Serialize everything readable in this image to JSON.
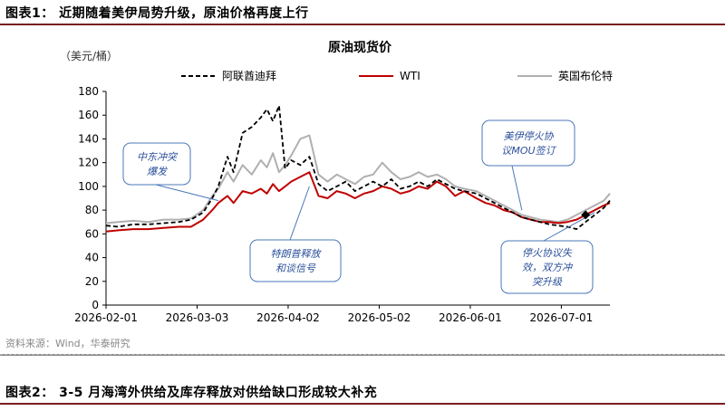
{
  "figure1": {
    "title": "图表1：  近期随着美伊局势升级，原油价格再度上行"
  },
  "figure2": {
    "title": "图表2：  3-5 月海湾外供给及库存释放对供给缺口形成较大补充"
  },
  "source": "资料来源：Wind，华泰研究",
  "colors": {
    "dubai": "#000000",
    "wti": "#c00000",
    "brent": "#b0b0b0",
    "rule": "#7a1f1f",
    "callout_border": "#4a78b8",
    "callout_text": "#2a4f9a"
  },
  "chart_data": {
    "type": "line",
    "title": "原油现货价",
    "unit_label": "（美元/桶）",
    "ylim": [
      0,
      180
    ],
    "yticks": [
      "0",
      "20",
      "40",
      "60",
      "80",
      "100",
      "120",
      "140",
      "160",
      "180"
    ],
    "xticks": [
      "2026-02-01",
      "2026-03-03",
      "2026-04-02",
      "2026-05-02",
      "2026-06-01",
      "2026-07-01"
    ],
    "xlim": [
      "2026-02-01",
      "2026-07-17"
    ],
    "grid": false,
    "legend_position": "top",
    "series": [
      {
        "name": "阿联酋迪拜",
        "style": "dashed",
        "color": "#000000",
        "points": [
          [
            "2026-02-01",
            67
          ],
          [
            "2026-02-05",
            66
          ],
          [
            "2026-02-10",
            68
          ],
          [
            "2026-02-15",
            68
          ],
          [
            "2026-02-20",
            69
          ],
          [
            "2026-02-25",
            70
          ],
          [
            "2026-03-01",
            72
          ],
          [
            "2026-03-05",
            78
          ],
          [
            "2026-03-08",
            90
          ],
          [
            "2026-03-10",
            100
          ],
          [
            "2026-03-13",
            125
          ],
          [
            "2026-03-15",
            112
          ],
          [
            "2026-03-18",
            145
          ],
          [
            "2026-03-21",
            150
          ],
          [
            "2026-03-24",
            158
          ],
          [
            "2026-03-26",
            165
          ],
          [
            "2026-03-28",
            155
          ],
          [
            "2026-03-30",
            168
          ],
          [
            "2026-04-01",
            115
          ],
          [
            "2026-04-03",
            122
          ],
          [
            "2026-04-06",
            118
          ],
          [
            "2026-04-09",
            125
          ],
          [
            "2026-04-12",
            102
          ],
          [
            "2026-04-15",
            96
          ],
          [
            "2026-04-18",
            100
          ],
          [
            "2026-04-21",
            104
          ],
          [
            "2026-04-24",
            96
          ],
          [
            "2026-04-27",
            100
          ],
          [
            "2026-04-30",
            104
          ],
          [
            "2026-05-03",
            100
          ],
          [
            "2026-05-06",
            106
          ],
          [
            "2026-05-09",
            98
          ],
          [
            "2026-05-12",
            100
          ],
          [
            "2026-05-15",
            104
          ],
          [
            "2026-05-18",
            100
          ],
          [
            "2026-05-21",
            106
          ],
          [
            "2026-05-24",
            102
          ],
          [
            "2026-05-27",
            98
          ],
          [
            "2026-05-30",
            96
          ],
          [
            "2026-06-03",
            94
          ],
          [
            "2026-06-06",
            90
          ],
          [
            "2026-06-09",
            86
          ],
          [
            "2026-06-12",
            82
          ],
          [
            "2026-06-15",
            78
          ],
          [
            "2026-06-18",
            74
          ],
          [
            "2026-06-21",
            72
          ],
          [
            "2026-06-24",
            70
          ],
          [
            "2026-06-27",
            68
          ],
          [
            "2026-06-30",
            67
          ],
          [
            "2026-07-03",
            66
          ],
          [
            "2026-07-06",
            64
          ],
          [
            "2026-07-09",
            70
          ],
          [
            "2026-07-12",
            76
          ],
          [
            "2026-07-15",
            82
          ],
          [
            "2026-07-17",
            88
          ]
        ]
      },
      {
        "name": "WTI",
        "style": "solid",
        "color": "#c00000",
        "points": [
          [
            "2026-02-01",
            62
          ],
          [
            "2026-02-05",
            63
          ],
          [
            "2026-02-10",
            64
          ],
          [
            "2026-02-15",
            64
          ],
          [
            "2026-02-20",
            65
          ],
          [
            "2026-02-25",
            66
          ],
          [
            "2026-03-01",
            66
          ],
          [
            "2026-03-05",
            72
          ],
          [
            "2026-03-08",
            80
          ],
          [
            "2026-03-10",
            86
          ],
          [
            "2026-03-13",
            92
          ],
          [
            "2026-03-15",
            86
          ],
          [
            "2026-03-18",
            96
          ],
          [
            "2026-03-21",
            94
          ],
          [
            "2026-03-24",
            98
          ],
          [
            "2026-03-26",
            94
          ],
          [
            "2026-03-28",
            102
          ],
          [
            "2026-03-30",
            96
          ],
          [
            "2026-04-01",
            100
          ],
          [
            "2026-04-03",
            104
          ],
          [
            "2026-04-06",
            108
          ],
          [
            "2026-04-09",
            112
          ],
          [
            "2026-04-12",
            92
          ],
          [
            "2026-04-15",
            90
          ],
          [
            "2026-04-18",
            96
          ],
          [
            "2026-04-21",
            94
          ],
          [
            "2026-04-24",
            90
          ],
          [
            "2026-04-27",
            94
          ],
          [
            "2026-04-30",
            96
          ],
          [
            "2026-05-03",
            100
          ],
          [
            "2026-05-06",
            98
          ],
          [
            "2026-05-09",
            94
          ],
          [
            "2026-05-12",
            96
          ],
          [
            "2026-05-15",
            100
          ],
          [
            "2026-05-18",
            98
          ],
          [
            "2026-05-21",
            104
          ],
          [
            "2026-05-24",
            100
          ],
          [
            "2026-05-27",
            92
          ],
          [
            "2026-05-30",
            96
          ],
          [
            "2026-06-03",
            90
          ],
          [
            "2026-06-06",
            86
          ],
          [
            "2026-06-09",
            84
          ],
          [
            "2026-06-12",
            80
          ],
          [
            "2026-06-15",
            78
          ],
          [
            "2026-06-18",
            74
          ],
          [
            "2026-06-21",
            72
          ],
          [
            "2026-06-24",
            70
          ],
          [
            "2026-06-27",
            70
          ],
          [
            "2026-06-30",
            69
          ],
          [
            "2026-07-03",
            70
          ],
          [
            "2026-07-06",
            72
          ],
          [
            "2026-07-09",
            76
          ],
          [
            "2026-07-12",
            80
          ],
          [
            "2026-07-15",
            84
          ],
          [
            "2026-07-17",
            86
          ]
        ]
      },
      {
        "name": "英国布伦特",
        "style": "solid",
        "color": "#b0b0b0",
        "points": [
          [
            "2026-02-01",
            69
          ],
          [
            "2026-02-05",
            70
          ],
          [
            "2026-02-10",
            71
          ],
          [
            "2026-02-15",
            70
          ],
          [
            "2026-02-20",
            72
          ],
          [
            "2026-02-25",
            72
          ],
          [
            "2026-03-01",
            73
          ],
          [
            "2026-03-05",
            80
          ],
          [
            "2026-03-08",
            92
          ],
          [
            "2026-03-10",
            98
          ],
          [
            "2026-03-13",
            112
          ],
          [
            "2026-03-15",
            104
          ],
          [
            "2026-03-18",
            118
          ],
          [
            "2026-03-21",
            110
          ],
          [
            "2026-03-24",
            122
          ],
          [
            "2026-03-26",
            116
          ],
          [
            "2026-03-28",
            128
          ],
          [
            "2026-03-30",
            112
          ],
          [
            "2026-04-01",
            118
          ],
          [
            "2026-04-03",
            126
          ],
          [
            "2026-04-06",
            140
          ],
          [
            "2026-04-09",
            143
          ],
          [
            "2026-04-12",
            110
          ],
          [
            "2026-04-15",
            104
          ],
          [
            "2026-04-18",
            110
          ],
          [
            "2026-04-21",
            106
          ],
          [
            "2026-04-24",
            102
          ],
          [
            "2026-04-27",
            108
          ],
          [
            "2026-04-30",
            110
          ],
          [
            "2026-05-03",
            120
          ],
          [
            "2026-05-06",
            112
          ],
          [
            "2026-05-09",
            106
          ],
          [
            "2026-05-12",
            108
          ],
          [
            "2026-05-15",
            112
          ],
          [
            "2026-05-18",
            108
          ],
          [
            "2026-05-21",
            110
          ],
          [
            "2026-05-24",
            106
          ],
          [
            "2026-05-27",
            100
          ],
          [
            "2026-05-30",
            98
          ],
          [
            "2026-06-03",
            96
          ],
          [
            "2026-06-06",
            92
          ],
          [
            "2026-06-09",
            88
          ],
          [
            "2026-06-12",
            84
          ],
          [
            "2026-06-15",
            80
          ],
          [
            "2026-06-18",
            76
          ],
          [
            "2026-06-21",
            74
          ],
          [
            "2026-06-24",
            72
          ],
          [
            "2026-06-27",
            71
          ],
          [
            "2026-06-30",
            70
          ],
          [
            "2026-07-03",
            72
          ],
          [
            "2026-07-06",
            76
          ],
          [
            "2026-07-09",
            80
          ],
          [
            "2026-07-12",
            84
          ],
          [
            "2026-07-15",
            88
          ],
          [
            "2026-07-17",
            94
          ]
        ]
      }
    ],
    "annotations": [
      {
        "text_lines": [
          "中东冲突",
          "爆发"
        ],
        "pointer_to": [
          "2026-03-10",
          88
        ]
      },
      {
        "text_lines": [
          "特朗普释放",
          "和谈信号"
        ],
        "pointer_to": [
          "2026-04-09",
          100
        ]
      },
      {
        "text_lines": [
          "美伊停火协",
          "议MOU签订"
        ],
        "pointer_to": [
          "2026-06-18",
          80
        ]
      },
      {
        "text_lines": [
          "停火协议失",
          "效，双方冲",
          "突升级"
        ],
        "pointer_to": [
          "2026-07-12",
          78
        ]
      }
    ]
  }
}
